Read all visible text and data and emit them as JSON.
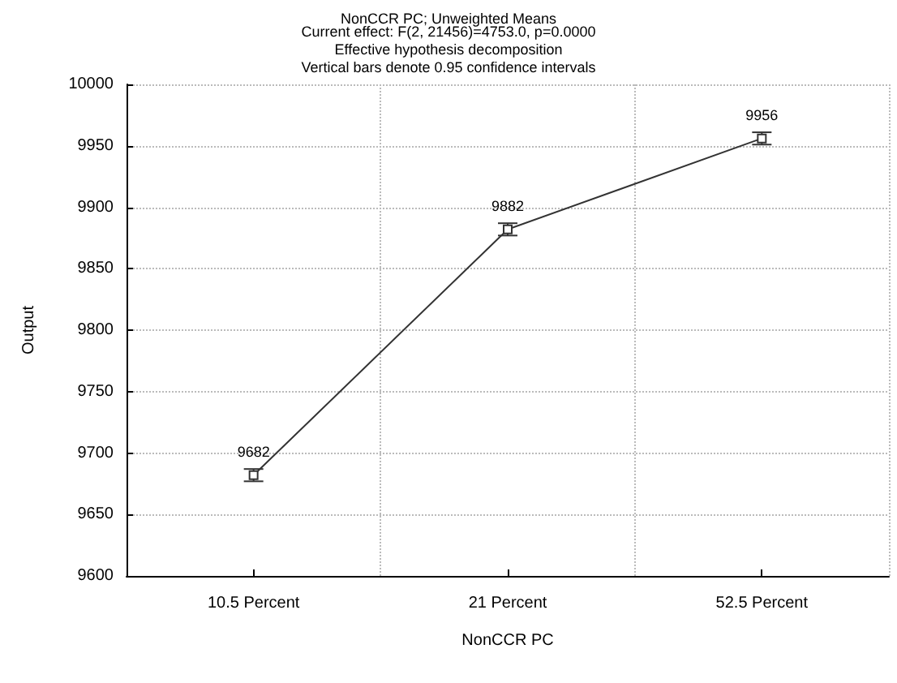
{
  "chart_data": {
    "type": "line",
    "title": "NonCCR PC; Unweighted Means",
    "subtitle": "Current effect: F(2, 21456)=4753.0, p=0.0000\nEffective hypothesis decomposition\nVertical bars denote 0.95 confidence intervals",
    "xlabel": "NonCCR PC",
    "ylabel": "Output",
    "categories": [
      "10.5 Percent",
      "21 Percent",
      "52.5 Percent"
    ],
    "series": [
      {
        "color": "#333333",
        "values": [
          9682,
          9882,
          9956
        ],
        "errors": [
          5,
          5,
          5
        ]
      }
    ],
    "ylim": [
      9600,
      10000
    ],
    "yticks": [
      9600,
      9650,
      9700,
      9750,
      9800,
      9850,
      9900,
      9950,
      10000
    ],
    "grid": true,
    "marker": "square",
    "line_style": "solid",
    "data_labels": true
  }
}
